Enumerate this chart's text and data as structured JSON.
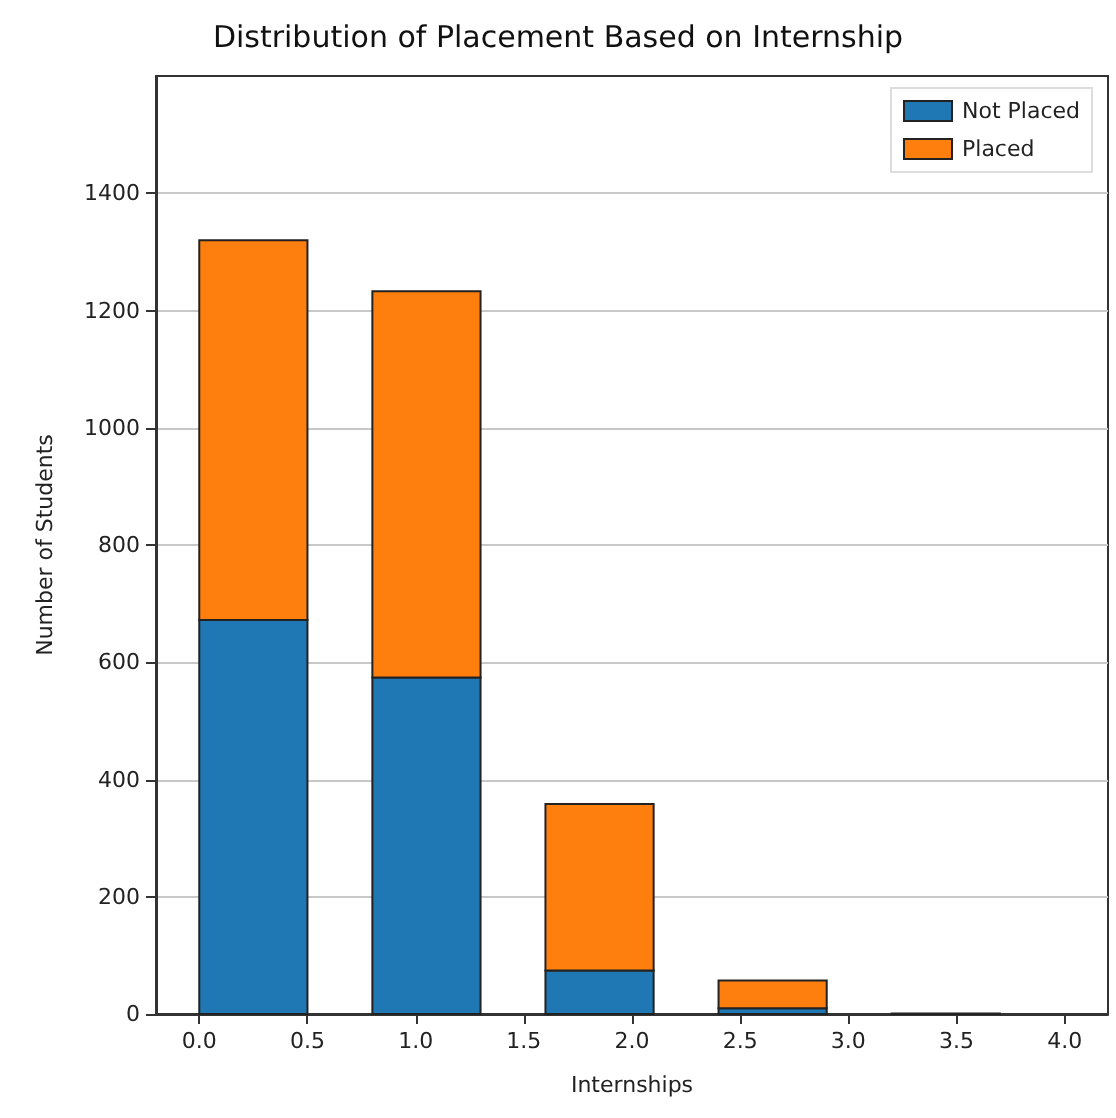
{
  "chart_data": {
    "type": "bar",
    "title": "Distribution of Placement Based on Internship",
    "xlabel": "Internships",
    "ylabel": "Number of Students",
    "x": [
      0.25,
      1.05,
      1.85,
      2.65,
      3.45
    ],
    "stacked": true,
    "series": [
      {
        "name": "Not Placed",
        "color": "#1f77b4",
        "values": [
          672,
          574,
          74,
          10,
          null
        ]
      },
      {
        "name": "Placed",
        "color": "#ff7f0e",
        "values": [
          648,
          659,
          284,
          47,
          1
        ]
      }
    ],
    "xlim": [
      -0.2,
      4.2
    ],
    "ylim": [
      0,
      1600
    ],
    "xticks": [
      {
        "value": 0,
        "label": "0.0"
      },
      {
        "value": 0.5,
        "label": "0.5"
      },
      {
        "value": 1,
        "label": "1.0"
      },
      {
        "value": 1.5,
        "label": "1.5"
      },
      {
        "value": 2,
        "label": "2.0"
      },
      {
        "value": 2.5,
        "label": "2.5"
      },
      {
        "value": 3,
        "label": "3.0"
      },
      {
        "value": 3.5,
        "label": "3.5"
      },
      {
        "value": 4,
        "label": "4.0"
      }
    ],
    "yticks": [
      0,
      200,
      400,
      600,
      800,
      1000,
      1200,
      1400
    ],
    "grid": "y",
    "legend": "top right"
  }
}
